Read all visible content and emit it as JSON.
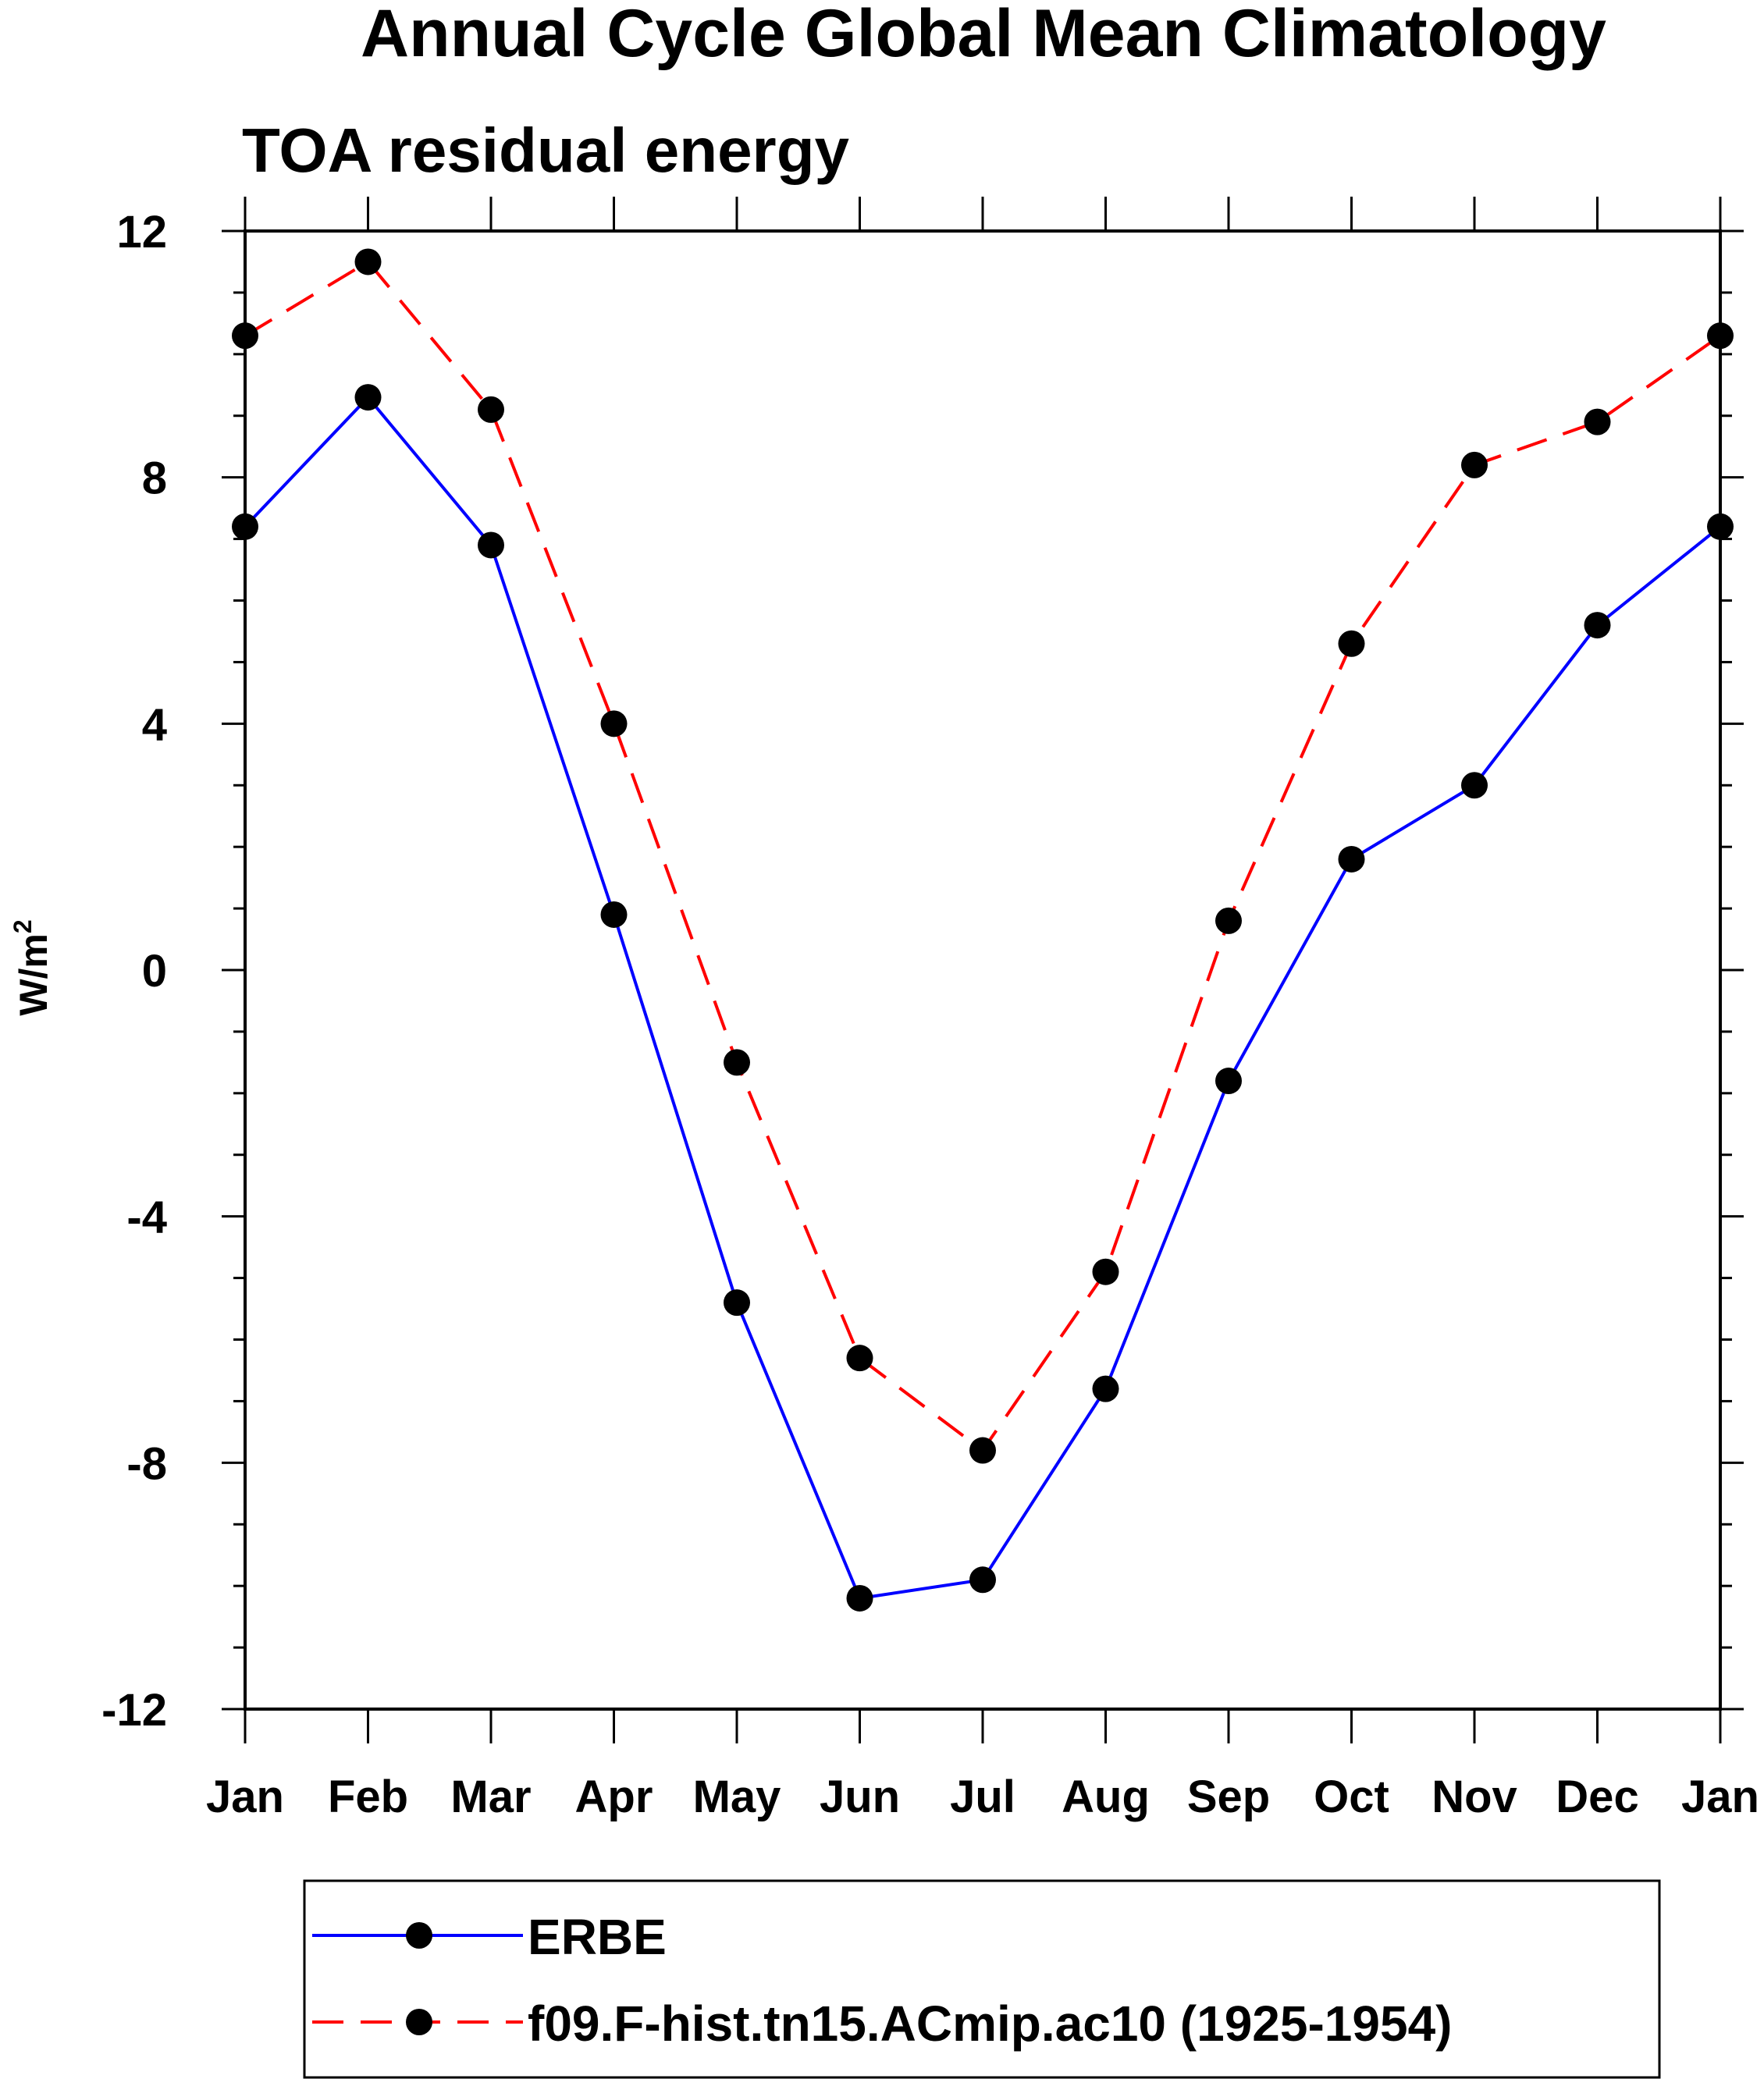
{
  "chart_data": {
    "type": "line",
    "title": "Annual Cycle Global Mean Climatology",
    "subtitle": "TOA residual energy",
    "xlabel": "",
    "ylabel": "W/m",
    "ylabel_superscript": "2",
    "categories": [
      "Jan",
      "Feb",
      "Mar",
      "Apr",
      "May",
      "Jun",
      "Jul",
      "Aug",
      "Sep",
      "Oct",
      "Nov",
      "Dec",
      "Jan"
    ],
    "ylim": [
      -12,
      12
    ],
    "yticks": [
      -12,
      -8,
      -4,
      0,
      4,
      8,
      12
    ],
    "ytick_labels": [
      "-12",
      "-8",
      "-4",
      "0",
      "4",
      "8",
      "12"
    ],
    "grid": false,
    "legend_position": "bottom-center",
    "series": [
      {
        "name": "ERBE",
        "color": "#0000ff",
        "dash": "solid",
        "marker": "filled-circle",
        "values": [
          7.2,
          9.3,
          6.9,
          0.9,
          -5.4,
          -10.2,
          -9.9,
          -6.8,
          -1.8,
          1.8,
          3.0,
          5.6,
          7.2
        ]
      },
      {
        "name": "f09.F-hist.tn15.ACmip.ac10 (1925-1954)",
        "color": "#ff0000",
        "dash": "dashed",
        "marker": "filled-circle",
        "values": [
          10.3,
          11.5,
          9.1,
          4.0,
          -1.5,
          -6.3,
          -7.8,
          -4.9,
          0.8,
          5.3,
          8.2,
          8.9,
          10.3
        ]
      }
    ]
  }
}
